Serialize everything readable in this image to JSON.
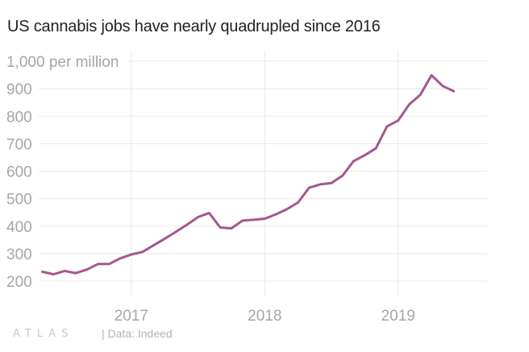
{
  "header": {
    "title": "US cannabis jobs have nearly quadrupled since 2016"
  },
  "footer": {
    "logo_text": "ATLAS",
    "source": "| Data: Indeed"
  },
  "colors": {
    "line": "#a4588f",
    "grid": "#e8e8e8",
    "tick_text": "#a6a6a6",
    "title": "#222222"
  },
  "chart_data": {
    "type": "line",
    "title": "US cannabis jobs have nearly quadrupled since 2016",
    "ylabel": "per million",
    "ylim": [
      200,
      1000
    ],
    "xlim": [
      "2016-03",
      "2019-09"
    ],
    "yticks": [
      200,
      300,
      400,
      500,
      600,
      700,
      800,
      900,
      1000
    ],
    "ytick_labels": [
      "200",
      "300",
      "400",
      "500",
      "600",
      "700",
      "800",
      "900",
      "1,000 per million"
    ],
    "xticks": [
      "2017-01",
      "2018-01",
      "2019-01"
    ],
    "xtick_labels": [
      "2017",
      "2018",
      "2019"
    ],
    "grid": true,
    "series": [
      {
        "name": "",
        "x": [
          "2016-05",
          "2016-06",
          "2016-07",
          "2016-08",
          "2016-09",
          "2016-10",
          "2016-11",
          "2016-12",
          "2017-01",
          "2017-02",
          "2017-03",
          "2017-04",
          "2017-05",
          "2017-06",
          "2017-07",
          "2017-08",
          "2017-09",
          "2017-10",
          "2017-11",
          "2017-12",
          "2018-01",
          "2018-02",
          "2018-03",
          "2018-04",
          "2018-05",
          "2018-06",
          "2018-07",
          "2018-08",
          "2018-09",
          "2018-10",
          "2018-11",
          "2018-12",
          "2019-01",
          "2019-02",
          "2019-03",
          "2019-04",
          "2019-05",
          "2019-06"
        ],
        "values": [
          234,
          225,
          237,
          229,
          242,
          262,
          262,
          283,
          297,
          306,
          330,
          354,
          379,
          405,
          433,
          448,
          395,
          392,
          420,
          423,
          427,
          443,
          462,
          486,
          540,
          552,
          557,
          584,
          637,
          658,
          683,
          763,
          784,
          843,
          878,
          949,
          910,
          891
        ]
      }
    ]
  }
}
